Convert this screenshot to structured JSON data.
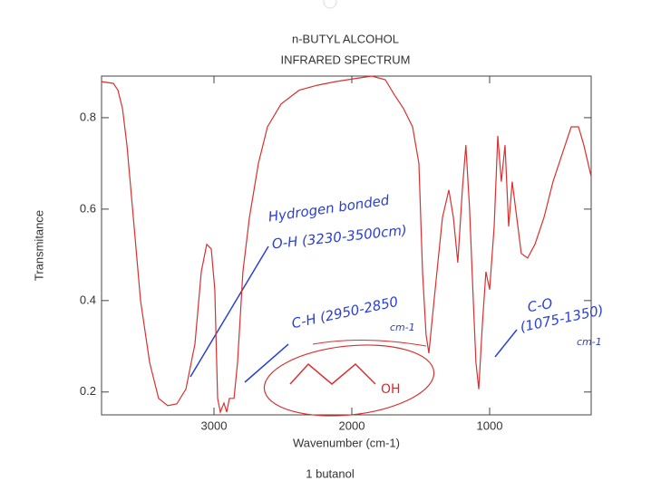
{
  "chart_data": {
    "type": "line",
    "title_lines": [
      "n-BUTYL ALCOHOL",
      "INFRARED SPECTRUM"
    ],
    "x_label": "Wavenumber (cm-1)",
    "y_label": "Transmitance",
    "caption": "1 butanol",
    "x": [
      3816,
      3730,
      3697,
      3664,
      3632,
      3579,
      3533,
      3467,
      3402,
      3336,
      3270,
      3204,
      3138,
      3092,
      3053,
      3020,
      2994,
      2974,
      2954,
      2928,
      2908,
      2888,
      2855,
      2829,
      2790,
      2743,
      2678,
      2612,
      2513,
      2382,
      2250,
      2119,
      1987,
      1855,
      1757,
      1691,
      1625,
      1559,
      1513,
      1487,
      1461,
      1441,
      1415,
      1382,
      1342,
      1296,
      1263,
      1231,
      1198,
      1172,
      1145,
      1119,
      1099,
      1079,
      1053,
      1027,
      1000,
      967,
      941,
      915,
      888,
      862,
      836,
      803,
      770,
      724,
      671,
      605,
      540,
      474,
      408,
      355,
      316,
      263
    ],
    "values": [
      0.879,
      0.875,
      0.86,
      0.82,
      0.74,
      0.56,
      0.4,
      0.265,
      0.186,
      0.17,
      0.174,
      0.206,
      0.305,
      0.463,
      0.523,
      0.513,
      0.424,
      0.186,
      0.156,
      0.176,
      0.156,
      0.186,
      0.186,
      0.265,
      0.463,
      0.582,
      0.7,
      0.78,
      0.83,
      0.86,
      0.871,
      0.879,
      0.885,
      0.891,
      0.883,
      0.85,
      0.82,
      0.78,
      0.7,
      0.463,
      0.325,
      0.285,
      0.364,
      0.463,
      0.582,
      0.642,
      0.582,
      0.483,
      0.642,
      0.74,
      0.6,
      0.404,
      0.265,
      0.206,
      0.345,
      0.463,
      0.424,
      0.562,
      0.76,
      0.66,
      0.74,
      0.562,
      0.66,
      0.582,
      0.503,
      0.493,
      0.523,
      0.582,
      0.66,
      0.72,
      0.78,
      0.78,
      0.74,
      0.671
    ],
    "color": "#d93030",
    "xlim": [
      3816,
      263
    ],
    "xticks": [
      3000,
      2000,
      1000
    ],
    "ylim": [
      0.15,
      0.891
    ],
    "yticks": [
      0.2,
      0.4,
      0.6,
      0.8
    ],
    "annotations": [
      "Hydrogen bonded",
      "O-H (3230-3500cm)",
      "C-H (2950-2850",
      "cm-1",
      "C-O",
      "(1075-1350)",
      "cm-1",
      "OH"
    ]
  }
}
